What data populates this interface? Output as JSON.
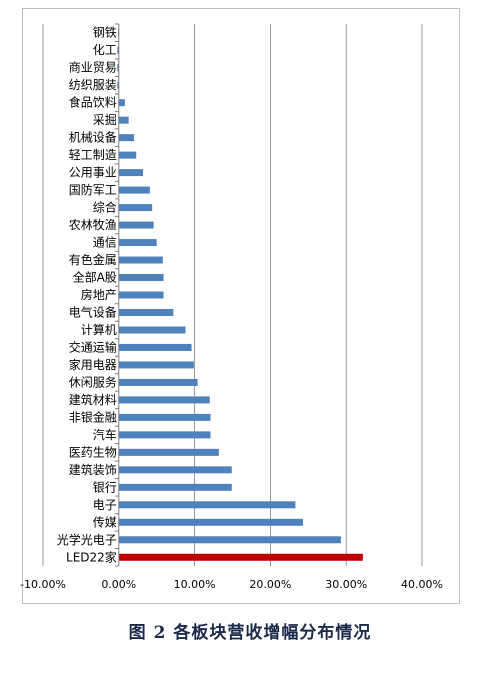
{
  "chart_data": {
    "type": "bar",
    "orientation": "horizontal",
    "categories": [
      "钢铁",
      "化工",
      "商业贸易",
      "纺织服装",
      "食品饮料",
      "采掘",
      "机械设备",
      "轻工制造",
      "公用事业",
      "国防军工",
      "综合",
      "农林牧渔",
      "通信",
      "有色金属",
      "全部A股",
      "房地产",
      "电气设备",
      "计算机",
      "交通运输",
      "家用电器",
      "休闲服务",
      "建筑材料",
      "非银金融",
      "汽车",
      "医药生物",
      "建筑装饰",
      "银行",
      "电子",
      "传媒",
      "光学光电子",
      "LED22家"
    ],
    "values": [
      -0.001,
      -0.002,
      -0.002,
      -0.002,
      0.008,
      0.013,
      0.02,
      0.023,
      0.032,
      0.041,
      0.044,
      0.046,
      0.05,
      0.058,
      0.059,
      0.059,
      0.072,
      0.088,
      0.096,
      0.099,
      0.104,
      0.12,
      0.121,
      0.121,
      0.132,
      0.149,
      0.149,
      0.233,
      0.243,
      0.293,
      0.322
    ],
    "highlight_index": 30,
    "xlim": [
      -0.1,
      0.4
    ],
    "xticks": [
      -0.1,
      0.0,
      0.1,
      0.2,
      0.3,
      0.4
    ],
    "xtick_labels": [
      "-10.00%",
      "0.00%",
      "10.00%",
      "20.00%",
      "30.00%",
      "40.00%"
    ],
    "grid": "vertical",
    "colors": {
      "bar": "#4f81bd",
      "highlight": "#c00000",
      "grid": "#7f7f7f",
      "axis": "#7f7f7f"
    }
  },
  "caption": "图 2  各板块营收增幅分布情况"
}
